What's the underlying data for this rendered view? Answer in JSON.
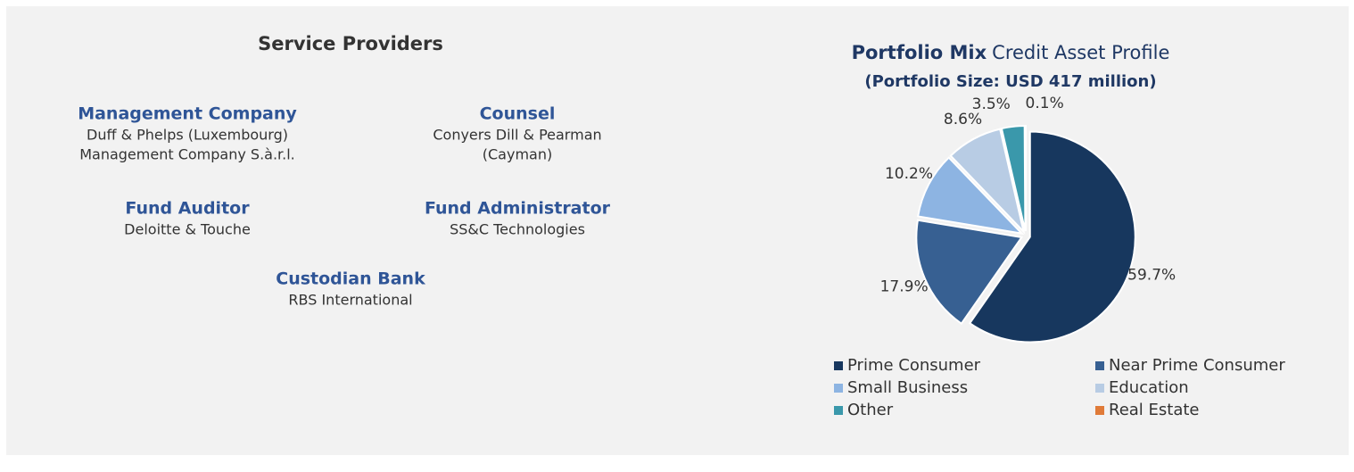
{
  "section_title": "Service Providers",
  "providers": [
    {
      "role": "Management Company",
      "lines": [
        "Duff & Phelps (Luxembourg)",
        "Management Company S.à.r.l."
      ]
    },
    {
      "role": "Counsel",
      "lines": [
        "Conyers Dill & Pearman",
        "(Cayman)"
      ]
    },
    {
      "role": "Fund Auditor",
      "lines": [
        "Deloitte & Touche"
      ]
    },
    {
      "role": "Fund Administrator",
      "lines": [
        "SS&C Technologies"
      ]
    },
    {
      "role": "Custodian Bank",
      "lines": [
        "RBS International"
      ]
    }
  ],
  "chart_data": {
    "type": "pie",
    "title": "Portfolio Mix",
    "title_detail": "Credit Asset Profile",
    "subtitle": "(Portfolio Size: USD 417 million)",
    "categories": [
      "Prime Consumer",
      "Near Prime Consumer",
      "Small Business",
      "Education",
      "Other",
      "Real Estate"
    ],
    "values": [
      59.7,
      17.9,
      10.2,
      8.6,
      3.5,
      0.1
    ],
    "value_labels": [
      "59.7%",
      "17.9%",
      "10.2%",
      "8.6%",
      "3.5%",
      "0.1%"
    ],
    "colors": [
      "#17375e",
      "#376092",
      "#8db4e2",
      "#b8cce4",
      "#3a98ab",
      "#e07b39"
    ],
    "legend": "bottom"
  }
}
